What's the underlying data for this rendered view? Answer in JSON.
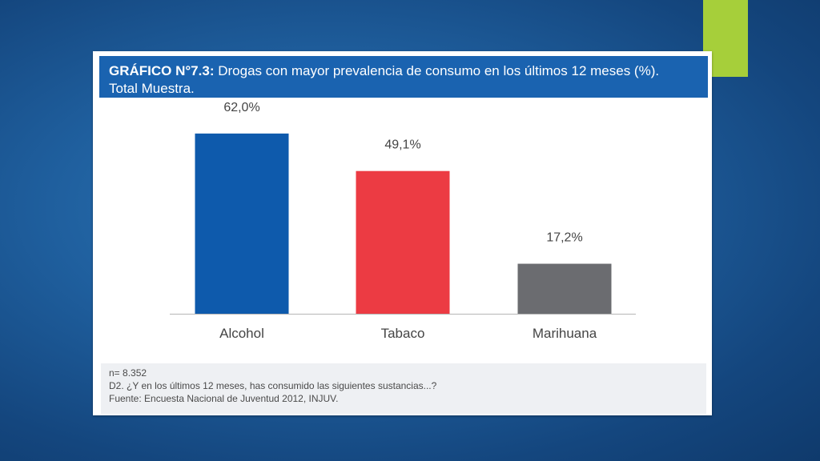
{
  "colors": {
    "accent_green": "#a6cf3a",
    "header_blue": "#1a63b0"
  },
  "chart_data": {
    "type": "bar",
    "title_prefix": "GRÁFICO N°7.3:",
    "title": "Drogas con mayor prevalencia de consumo en los últimos 12 meses (%).",
    "subtitle": "Total Muestra.",
    "categories": [
      "Alcohol",
      "Tabaco",
      "Marihuana"
    ],
    "values": [
      62.0,
      49.1,
      17.2
    ],
    "value_labels": [
      "62,0%",
      "49,1%",
      "17,2%"
    ],
    "colors": [
      "#0e5aac",
      "#ec3b43",
      "#6b6c70"
    ],
    "ylim": [
      0,
      70
    ],
    "grid": false,
    "legend": "none"
  },
  "notes": {
    "sample": "n= 8.352",
    "question": "D2. ¿Y en los últimos 12 meses, has consumido las siguientes sustancias...?",
    "source": "Fuente: Encuesta Nacional de Juventud 2012, INJUV."
  }
}
